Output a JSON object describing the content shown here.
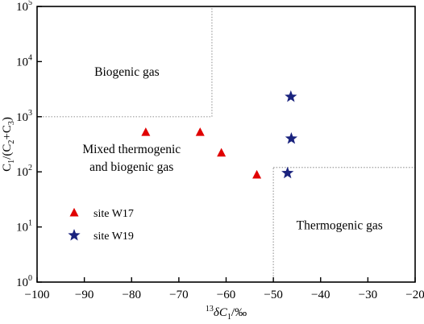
{
  "chart_data": {
    "type": "scatter",
    "xaxis": {
      "range": [
        -100,
        -20
      ],
      "ticks": [
        -100,
        -90,
        -80,
        -70,
        -60,
        -50,
        -40,
        -30,
        -20
      ],
      "tick_labels": [
        "−100",
        "−90",
        "−80",
        "−70",
        "−60",
        "−50",
        "−40",
        "−30",
        "−20"
      ],
      "label_sup": "13",
      "label": "δC",
      "label_sub": "1",
      "label_suffix": "/‰"
    },
    "yaxis": {
      "scale": "log",
      "range": [
        1,
        100000
      ],
      "ticks": [
        1,
        10,
        100,
        1000,
        10000,
        100000
      ],
      "tick_bases": [
        "10",
        "10",
        "10",
        "10",
        "10",
        "10"
      ],
      "tick_exponents": [
        "0",
        "1",
        "2",
        "3",
        "4",
        "5"
      ],
      "label_parts": {
        "c1": "C",
        "s1": "1",
        "mid": "/(C",
        "s2": "2",
        "plus": "+C",
        "s3": "3",
        "end": ")"
      }
    },
    "series": [
      {
        "name": "site W17",
        "marker": "triangle",
        "color": "#e00000",
        "points": [
          [
            -77,
            520
          ],
          [
            -65.5,
            520
          ],
          [
            -61,
            220
          ],
          [
            -53.5,
            88
          ]
        ]
      },
      {
        "name": "site W19",
        "marker": "star",
        "color": "#1a237e",
        "points": [
          [
            -46.3,
            2300
          ],
          [
            -46.2,
            400
          ],
          [
            -47,
            95
          ]
        ]
      }
    ],
    "regions": [
      {
        "label": "Biogenic gas",
        "anchor": [
          -81,
          5500
        ]
      },
      {
        "label": "Mixed thermogenic",
        "label2": "and biogenic gas",
        "anchor": [
          -80,
          220
        ]
      },
      {
        "label": "Thermogenic gas",
        "anchor": [
          -36,
          9
        ]
      }
    ],
    "boundaries": [
      {
        "from": [
          -100,
          1000
        ],
        "to": [
          -63,
          1000
        ]
      },
      {
        "from": [
          -63,
          1000
        ],
        "to": [
          -63,
          100000
        ]
      },
      {
        "from": [
          -50,
          1
        ],
        "to": [
          -50,
          120
        ]
      },
      {
        "from": [
          -50,
          120
        ],
        "to": [
          -20,
          120
        ]
      }
    ],
    "legend": {
      "placement": "lower-left"
    },
    "grid": false
  }
}
